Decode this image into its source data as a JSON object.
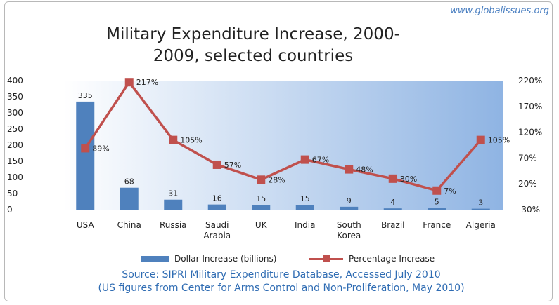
{
  "watermark": "www.globalissues.org",
  "chart_data": {
    "type": "bar",
    "title_line1": "Military Expenditure Increase, 2000-",
    "title_line2": "2009, selected countries",
    "categories": [
      "USA",
      "China",
      "Russia",
      "Saudi Arabia",
      "UK",
      "India",
      "South Korea",
      "Brazil",
      "France",
      "Algeria"
    ],
    "category_lines": [
      [
        "USA"
      ],
      [
        "China"
      ],
      [
        "Russia"
      ],
      [
        "Saudi",
        "Arabia"
      ],
      [
        "UK"
      ],
      [
        "India"
      ],
      [
        "South",
        "Korea"
      ],
      [
        "Brazil"
      ],
      [
        "France"
      ],
      [
        "Algeria"
      ]
    ],
    "series": [
      {
        "name": "Dollar Increase (billions)",
        "type": "bar",
        "axis": "left",
        "color": "#4f81bd",
        "values": [
          335,
          68,
          31,
          16,
          15,
          15,
          9,
          4,
          5,
          3
        ],
        "labels": [
          "335",
          "68",
          "31",
          "16",
          "15",
          "15",
          "9",
          "4",
          "5",
          "3"
        ]
      },
      {
        "name": "Percentage Increase",
        "type": "line",
        "axis": "right",
        "color": "#c0504d",
        "values": [
          89,
          217,
          105,
          57,
          28,
          67,
          48,
          30,
          7,
          105
        ],
        "labels": [
          "89%",
          "217%",
          "105%",
          "57%",
          "28%",
          "67%",
          "48%",
          "30%",
          "7%",
          "105%"
        ]
      }
    ],
    "y_left": {
      "range": [
        0,
        400
      ],
      "ticks": [
        0,
        50,
        100,
        150,
        200,
        250,
        300,
        350,
        400
      ],
      "tick_labels": [
        "0",
        "50",
        "100",
        "150",
        "200",
        "250",
        "300",
        "350",
        "400"
      ]
    },
    "y_right": {
      "range": [
        -30,
        220
      ],
      "ticks": [
        -30,
        20,
        70,
        120,
        170,
        220
      ],
      "tick_labels": [
        "-30%",
        "20%",
        "70%",
        "120%",
        "170%",
        "220%"
      ]
    },
    "grid": false,
    "legend_position": "bottom",
    "plot_background": [
      "#ffffff",
      "#8fb4e3"
    ]
  },
  "source_line1": "Source: SIPRI Military Expenditure Database, Accessed July 2010",
  "source_line2": "(US figures from Center for Arms Control and Non-Proliferation, May 2010)"
}
